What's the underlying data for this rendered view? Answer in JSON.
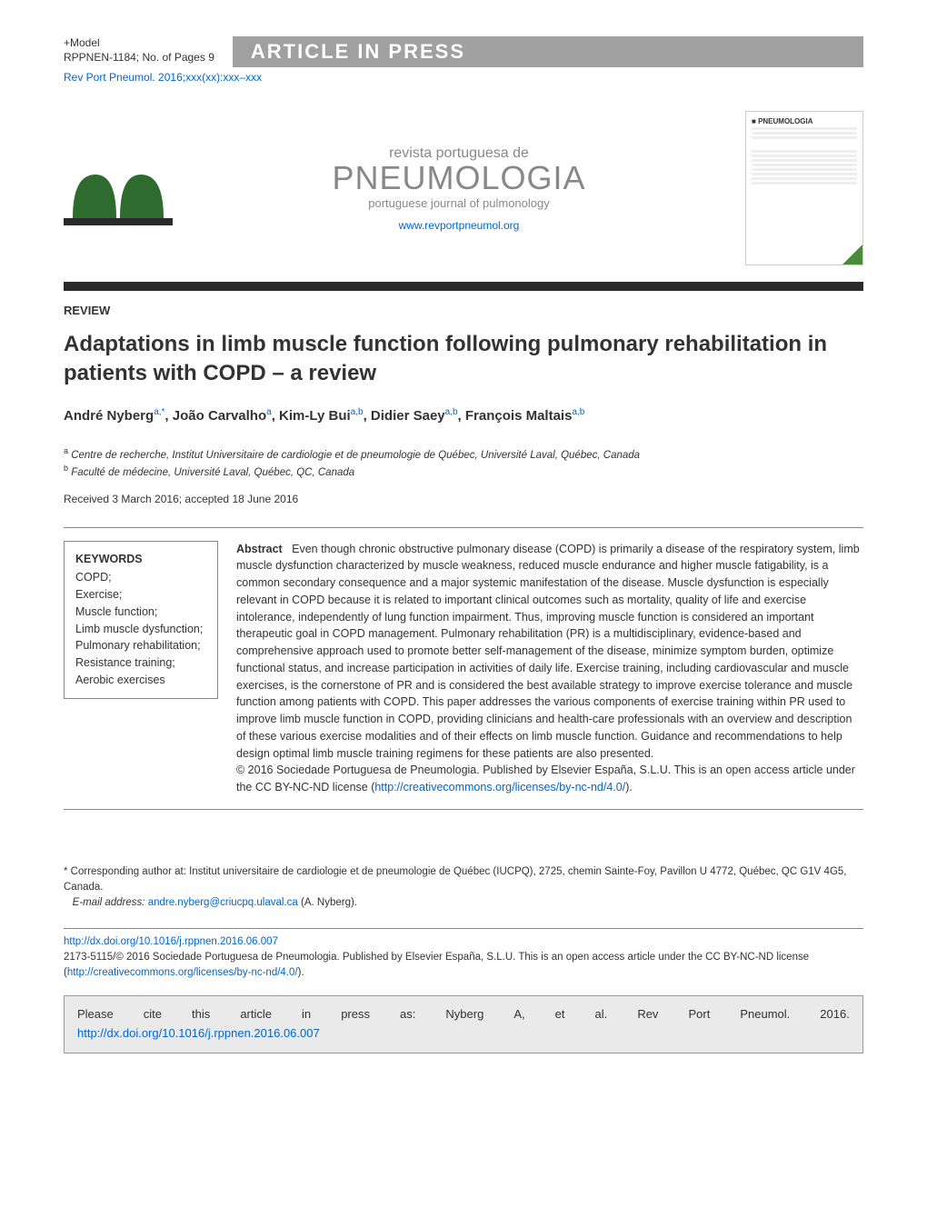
{
  "header": {
    "model_line1": "+Model",
    "model_line2": "RPPNEN-1184;   No. of Pages 9",
    "aip_label": "ARTICLE IN PRESS",
    "citation": "Rev Port Pneumol. 2016;xxx(xx):xxx–xxx"
  },
  "masthead": {
    "sub1": "revista portuguesa de",
    "title": "PNEUMOLOGIA",
    "sub2": "portuguese journal of pulmonology",
    "url": "www.revportpneumol.org",
    "cover_title": "PNEUMOLOGIA"
  },
  "article": {
    "section": "REVIEW",
    "title": "Adaptations in limb muscle function following pulmonary rehabilitation in patients with COPD – a review",
    "authors_html": [
      {
        "name": "André Nyberg",
        "sup": "a,*"
      },
      {
        "name": "João Carvalho",
        "sup": "a"
      },
      {
        "name": "Kim-Ly Bui",
        "sup": "a,b"
      },
      {
        "name": "Didier Saey",
        "sup": "a,b"
      },
      {
        "name": "François Maltais",
        "sup": "a,b"
      }
    ],
    "affiliations": [
      {
        "sup": "a",
        "text": "Centre de recherche, Institut Universitaire de cardiologie et de pneumologie de Québec, Université Laval, Québec, Canada"
      },
      {
        "sup": "b",
        "text": "Faculté de médecine, Université Laval, Québec, QC, Canada"
      }
    ],
    "dates": "Received 3 March 2016; accepted 18 June 2016"
  },
  "keywords": {
    "heading": "KEYWORDS",
    "items": [
      "COPD;",
      "Exercise;",
      "Muscle function;",
      "Limb muscle dysfunction;",
      "Pulmonary rehabilitation;",
      "Resistance training;",
      "Aerobic exercises"
    ]
  },
  "abstract": {
    "heading": "Abstract",
    "body": "Even though chronic obstructive pulmonary disease (COPD) is primarily a disease of the respiratory system, limb muscle dysfunction characterized by muscle weakness, reduced muscle endurance and higher muscle fatigability, is a common secondary consequence and a major systemic manifestation of the disease. Muscle dysfunction is especially relevant in COPD because it is related to important clinical outcomes such as mortality, quality of life and exercise intolerance, independently of lung function impairment. Thus, improving muscle function is considered an important therapeutic goal in COPD management. Pulmonary rehabilitation (PR) is a multidisciplinary, evidence-based and comprehensive approach used to promote better self-management of the disease, minimize symptom burden, optimize functional status, and increase participation in activities of daily life. Exercise training, including cardiovascular and muscle exercises, is the cornerstone of PR and is considered the best available strategy to improve exercise tolerance and muscle function among patients with COPD. This paper addresses the various components of exercise training within PR used to improve limb muscle function in COPD, providing clinicians and health-care professionals with an overview and description of these various exercise modalities and of their effects on limb muscle function. Guidance and recommendations to help design optimal limb muscle training regimens for these patients are also presented.",
    "copyright": "© 2016 Sociedade Portuguesa de Pneumologia. Published by Elsevier España, S.L.U. This is an open access article under the CC BY-NC-ND license (",
    "license_url_text": "http://creativecommons.org/licenses/by-nc-nd/4.0/",
    "copyright_end": ")."
  },
  "footer": {
    "corr": "* Corresponding author at: Institut universitaire de cardiologie et de pneumologie de Québec (IUCPQ), 2725, chemin Sainte-Foy, Pavillon U 4772, Québec, QC G1V 4G5, Canada.",
    "email_label": "E-mail address:",
    "email": "andre.nyberg@criucpq.ulaval.ca",
    "email_name": "(A. Nyberg).",
    "doi_url": "http://dx.doi.org/10.1016/j.rppnen.2016.06.007",
    "issn_line": "2173-5115/© 2016 Sociedade Portuguesa de Pneumologia. Published by Elsevier España, S.L.U. This is an open access article under the CC BY-NC-ND license (",
    "license_url_text": "http://creativecommons.org/licenses/by-nc-nd/4.0/",
    "issn_end": ").",
    "cite_words": [
      "Please",
      "cite",
      "this",
      "article",
      "in",
      "press",
      "as:",
      "Nyberg",
      "A,",
      "et",
      "al.",
      "Rev",
      "Port",
      "Pneumol.",
      "2016."
    ],
    "cite_doi": "http://dx.doi.org/10.1016/j.rppnen.2016.06.007"
  },
  "colors": {
    "link": "#0066cc",
    "aip_bg": "#a0a0a0",
    "dark_bar": "#2a2a2a",
    "cite_bg": "#eaeaea",
    "logo_green": "#2e6b2e",
    "cover_corner": "#4a8a3a"
  }
}
